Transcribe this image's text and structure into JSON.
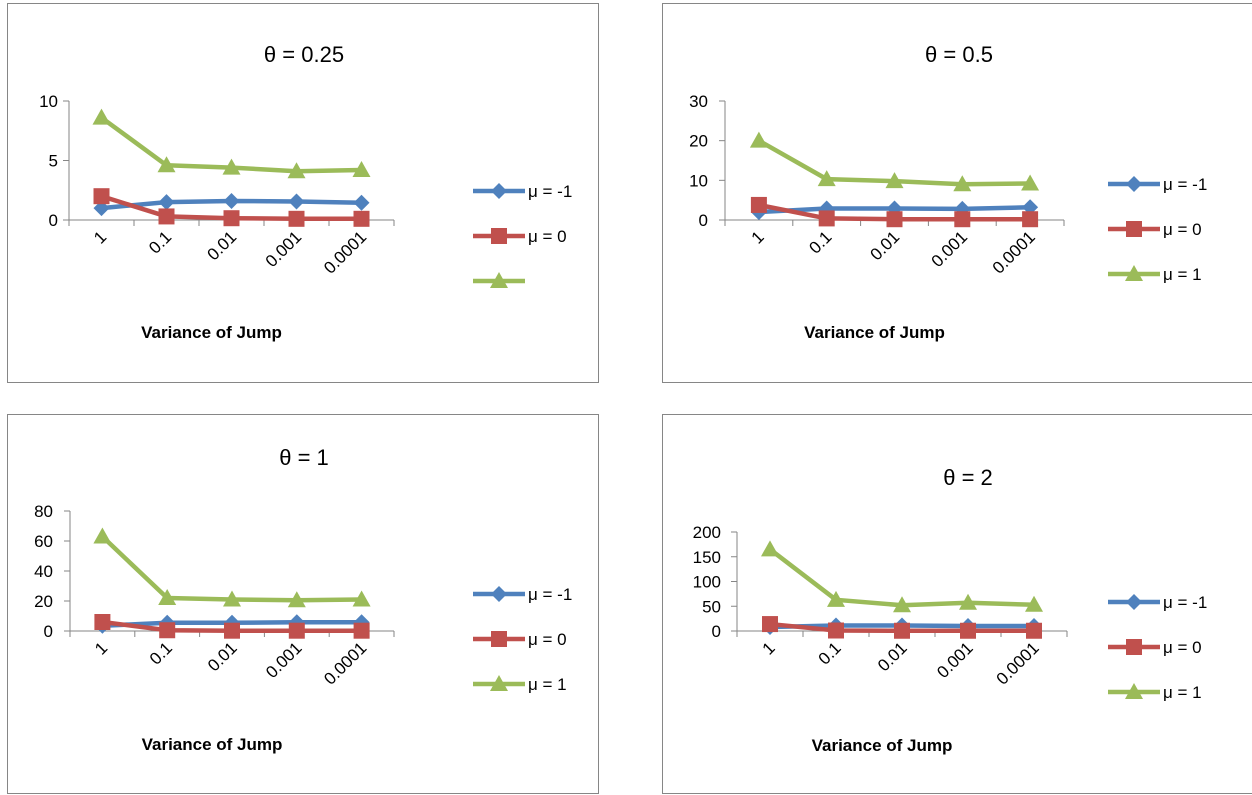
{
  "chart_data": [
    {
      "type": "line",
      "title": "θ = 0.25",
      "xlabel": "Variance of Jump",
      "ylabel": "",
      "categories": [
        "1",
        "0.1",
        "0.01",
        "0.001",
        "0.0001"
      ],
      "ylim": [
        0,
        10
      ],
      "yticks": [
        0,
        5,
        10
      ],
      "legend_position": "right",
      "series": [
        {
          "name": "μ = -1",
          "color": "#4f81bd",
          "marker": "diamond",
          "values": [
            1.0,
            1.5,
            1.6,
            1.55,
            1.45
          ]
        },
        {
          "name": "μ = 0",
          "color": "#c0504d",
          "marker": "square",
          "values": [
            2.0,
            0.3,
            0.15,
            0.1,
            0.1
          ]
        },
        {
          "name": "",
          "color": "#9bbb59",
          "marker": "triangle",
          "values": [
            8.6,
            4.6,
            4.4,
            4.1,
            4.2
          ]
        }
      ]
    },
    {
      "type": "line",
      "title": "θ = 0.5",
      "xlabel": "Variance of Jump",
      "ylabel": "",
      "categories": [
        "1",
        "0.1",
        "0.01",
        "0.001",
        "0.0001"
      ],
      "ylim": [
        0,
        30
      ],
      "yticks": [
        0,
        10,
        20,
        30
      ],
      "legend_position": "right",
      "series": [
        {
          "name": "μ = -1",
          "color": "#4f81bd",
          "marker": "diamond",
          "values": [
            2.0,
            2.9,
            2.9,
            2.8,
            3.2
          ]
        },
        {
          "name": "μ = 0",
          "color": "#c0504d",
          "marker": "square",
          "values": [
            3.8,
            0.4,
            0.2,
            0.2,
            0.2
          ]
        },
        {
          "name": "μ = 1",
          "color": "#9bbb59",
          "marker": "triangle",
          "values": [
            20.0,
            10.3,
            9.8,
            9.0,
            9.2
          ]
        }
      ]
    },
    {
      "type": "line",
      "title": "θ = 1",
      "xlabel": "Variance of Jump",
      "ylabel": "",
      "categories": [
        "1",
        "0.1",
        "0.01",
        "0.001",
        "0.0001"
      ],
      "ylim": [
        0,
        80
      ],
      "yticks": [
        0,
        20,
        40,
        60,
        80
      ],
      "legend_position": "right",
      "series": [
        {
          "name": "μ = -1",
          "color": "#4f81bd",
          "marker": "diamond",
          "values": [
            3.5,
            5.5,
            5.5,
            5.8,
            5.8
          ]
        },
        {
          "name": "μ = 0",
          "color": "#c0504d",
          "marker": "square",
          "values": [
            6.0,
            0.5,
            0.2,
            0.2,
            0.2
          ]
        },
        {
          "name": "μ = 1",
          "color": "#9bbb59",
          "marker": "triangle",
          "values": [
            63.0,
            22.0,
            21.0,
            20.5,
            21.0
          ]
        }
      ]
    },
    {
      "type": "line",
      "title": "θ = 2",
      "xlabel": "Variance of Jump",
      "ylabel": "",
      "categories": [
        "1",
        "0.1",
        "0.01",
        "0.001",
        "0.0001"
      ],
      "ylim": [
        0,
        200
      ],
      "yticks": [
        0,
        50,
        100,
        150,
        200
      ],
      "legend_position": "right",
      "series": [
        {
          "name": "μ = -1",
          "color": "#4f81bd",
          "marker": "diamond",
          "values": [
            8,
            11,
            11,
            10,
            10
          ]
        },
        {
          "name": "μ = 0",
          "color": "#c0504d",
          "marker": "square",
          "values": [
            14,
            1,
            0.5,
            0.5,
            0.5
          ]
        },
        {
          "name": "μ = 1",
          "color": "#9bbb59",
          "marker": "triangle",
          "values": [
            165,
            63,
            52,
            57,
            53
          ]
        }
      ]
    }
  ]
}
